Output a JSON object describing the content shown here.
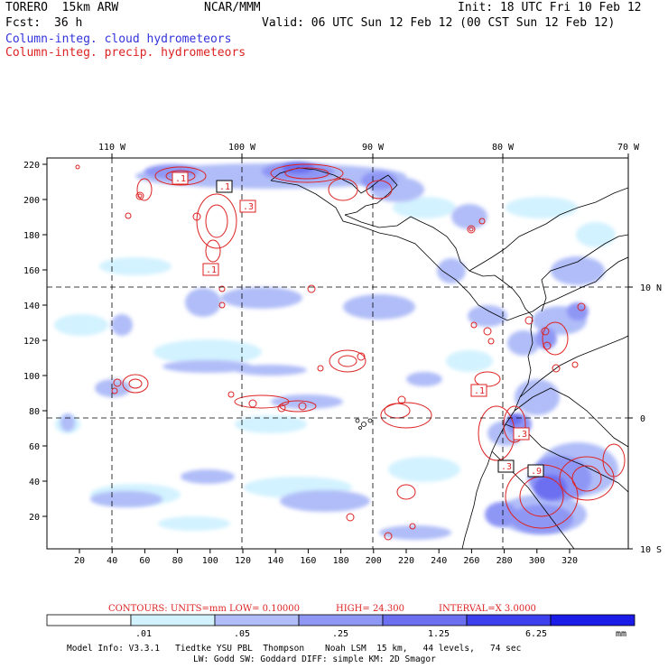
{
  "header": {
    "model": "TORERO  15km ARW",
    "org": "NCAR/MMM",
    "init": "Init: 18 UTC Fri 10 Feb 12",
    "fcst_label": "Fcst:",
    "fcst_value": "36 h",
    "valid": "Valid: 06 UTC Sun 12 Feb 12 (00 CST Sun 12 Feb 12)",
    "legend_cloud": "Column-integ. cloud hydrometeors",
    "legend_precip": "Column-integ. precip. hydrometeors"
  },
  "axes": {
    "top_lon": [
      "110 W",
      "100 W",
      "90 W",
      "80 W",
      "70 W"
    ],
    "left_grid": [
      "220",
      "200",
      "180",
      "160",
      "140",
      "120",
      "100",
      "80",
      "60",
      "40",
      "20"
    ],
    "bottom_grid": [
      "20",
      "40",
      "60",
      "80",
      "100",
      "120",
      "140",
      "160",
      "180",
      "200",
      "220",
      "240",
      "260",
      "280",
      "300",
      "320"
    ],
    "right_lat": [
      "10 N",
      "0",
      "10 S"
    ]
  },
  "contour_labels": [
    ".1",
    ".1",
    ".3",
    ".1",
    ".1",
    ".3",
    ".3",
    ".9"
  ],
  "contour_info": {
    "units": "CONTOURS:  UNITS=mm  LOW= 0.10000",
    "high": "HIGH=  24.300",
    "interval": "INTERVAL=X  3.0000"
  },
  "colorbar": {
    "units": "mm",
    "labels": [
      ".01",
      ".05",
      ".25",
      "1.25",
      "6.25"
    ],
    "colors": [
      "#ffffff",
      "#d2f2ff",
      "#b0bdf8",
      "#8f97f5",
      "#6c70f0",
      "#3e40ee",
      "#1c1ce8"
    ]
  },
  "model_info": {
    "line1": "Model Info: V3.3.1   Tiedtke YSU PBL  Thompson    Noah LSM  15 km,   44 levels,   74 sec",
    "line2": "LW: Godd SW: Goddard DIFF: simple KM: 2D Smagor"
  }
}
